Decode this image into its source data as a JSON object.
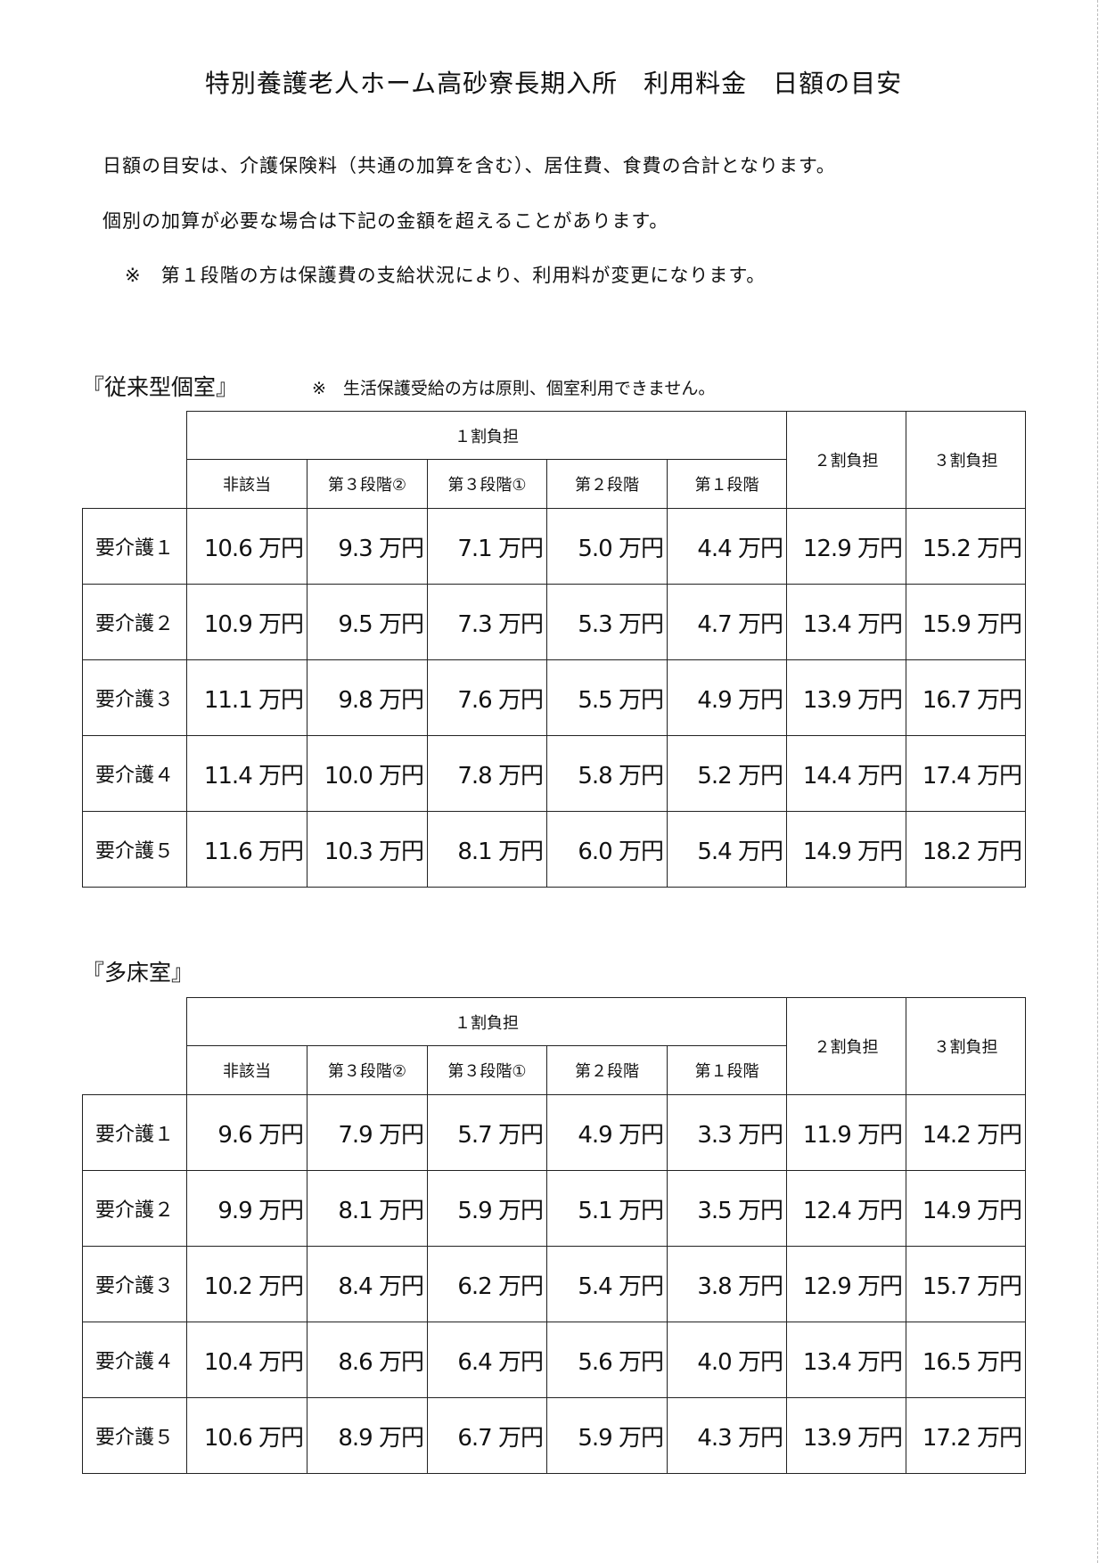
{
  "title": "特別養護老人ホーム高砂寮長期入所　利用料金　日額の目安",
  "intro": [
    "日額の目安は、介護保険料（共通の加算を含む）、居住費、食費の合計となります。",
    "個別の加算が必要な場合は下記の金額を超えることがあります。",
    "※　第１段階の方は保護費の支給状況により、利用料が変更になります。"
  ],
  "tables": [
    {
      "heading": "『従来型個室』",
      "note": "※　生活保護受給の方は原則、個室利用できません。",
      "group_header": "１割負担",
      "sub_headers": [
        "非該当",
        "第３段階②",
        "第３段階①",
        "第２段階",
        "第１段階"
      ],
      "extra_headers": [
        "２割負担",
        "３割負担"
      ],
      "rows": [
        {
          "label": "要介護１",
          "values": [
            "10.6 万円",
            "9.3 万円",
            "7.1 万円",
            "5.0 万円",
            "4.4 万円",
            "12.9 万円",
            "15.2 万円"
          ]
        },
        {
          "label": "要介護２",
          "values": [
            "10.9 万円",
            "9.5 万円",
            "7.3 万円",
            "5.3 万円",
            "4.7 万円",
            "13.4 万円",
            "15.9 万円"
          ]
        },
        {
          "label": "要介護３",
          "values": [
            "11.1 万円",
            "9.8 万円",
            "7.6 万円",
            "5.5 万円",
            "4.9 万円",
            "13.9 万円",
            "16.7 万円"
          ]
        },
        {
          "label": "要介護４",
          "values": [
            "11.4 万円",
            "10.0 万円",
            "7.8 万円",
            "5.8 万円",
            "5.2 万円",
            "14.4 万円",
            "17.4 万円"
          ]
        },
        {
          "label": "要介護５",
          "values": [
            "11.6 万円",
            "10.3 万円",
            "8.1 万円",
            "6.0 万円",
            "5.4 万円",
            "14.9 万円",
            "18.2 万円"
          ]
        }
      ]
    },
    {
      "heading": "『多床室』",
      "group_header": "１割負担",
      "sub_headers": [
        "非該当",
        "第３段階②",
        "第３段階①",
        "第２段階",
        "第１段階"
      ],
      "extra_headers": [
        "２割負担",
        "３割負担"
      ],
      "rows": [
        {
          "label": "要介護１",
          "values": [
            "9.6 万円",
            "7.9 万円",
            "5.7 万円",
            "4.9 万円",
            "3.3 万円",
            "11.9 万円",
            "14.2 万円"
          ]
        },
        {
          "label": "要介護２",
          "values": [
            "9.9 万円",
            "8.1 万円",
            "5.9 万円",
            "5.1 万円",
            "3.5 万円",
            "12.4 万円",
            "14.9 万円"
          ]
        },
        {
          "label": "要介護３",
          "values": [
            "10.2 万円",
            "8.4 万円",
            "6.2 万円",
            "5.4 万円",
            "3.8 万円",
            "12.9 万円",
            "15.7 万円"
          ]
        },
        {
          "label": "要介護４",
          "values": [
            "10.4 万円",
            "8.6 万円",
            "6.4 万円",
            "5.6 万円",
            "4.0 万円",
            "13.4 万円",
            "16.5 万円"
          ]
        },
        {
          "label": "要介護５",
          "values": [
            "10.6 万円",
            "8.9 万円",
            "6.7 万円",
            "5.9 万円",
            "4.3 万円",
            "13.9 万円",
            "17.2 万円"
          ]
        }
      ]
    }
  ]
}
